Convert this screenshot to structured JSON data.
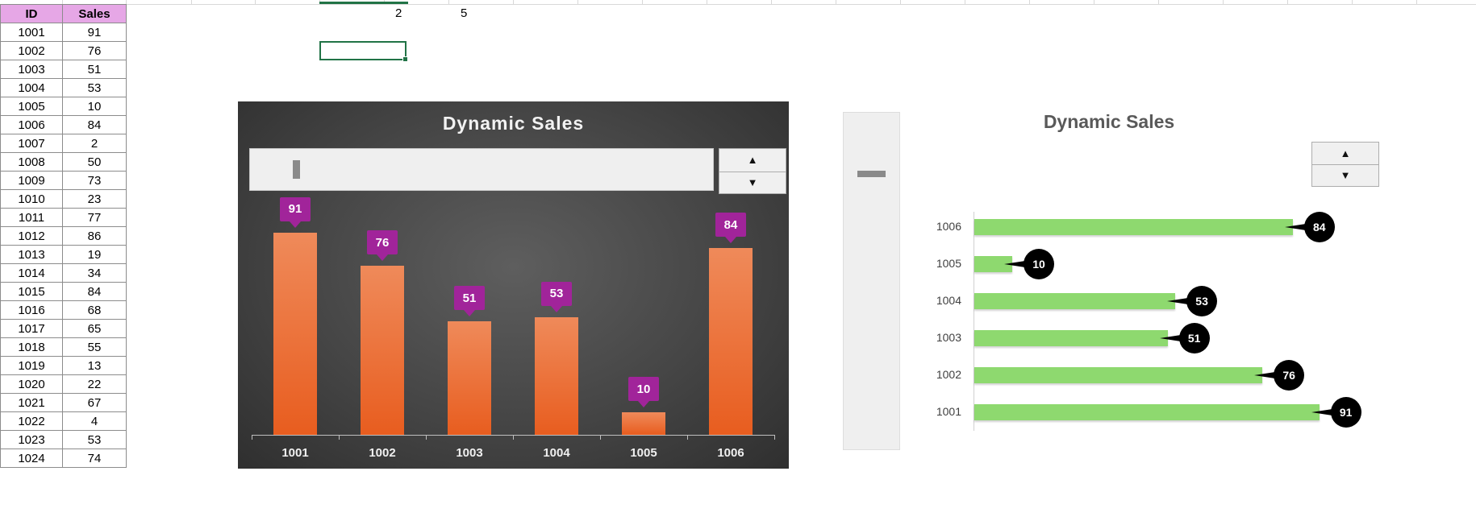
{
  "table": {
    "headers": [
      "ID",
      "Sales"
    ],
    "rows": [
      [
        "1001",
        "91"
      ],
      [
        "1002",
        "76"
      ],
      [
        "1003",
        "51"
      ],
      [
        "1004",
        "53"
      ],
      [
        "1005",
        "10"
      ],
      [
        "1006",
        "84"
      ],
      [
        "1007",
        "2"
      ],
      [
        "1008",
        "50"
      ],
      [
        "1009",
        "73"
      ],
      [
        "1010",
        "23"
      ],
      [
        "1011",
        "77"
      ],
      [
        "1012",
        "86"
      ],
      [
        "1013",
        "19"
      ],
      [
        "1014",
        "34"
      ],
      [
        "1015",
        "84"
      ],
      [
        "1016",
        "68"
      ],
      [
        "1017",
        "65"
      ],
      [
        "1018",
        "55"
      ],
      [
        "1019",
        "13"
      ],
      [
        "1020",
        "22"
      ],
      [
        "1021",
        "67"
      ],
      [
        "1022",
        "4"
      ],
      [
        "1023",
        "53"
      ],
      [
        "1024",
        "74"
      ]
    ]
  },
  "cells": {
    "val_a": "2",
    "val_b": "5"
  },
  "colors": {
    "header_fill": "#e6a7e6",
    "bar_orange": "#e8641f",
    "label_purple": "#a1249a",
    "bar_green": "#8ed96f",
    "chart_dark": "#454545"
  },
  "controls": {
    "spin_up_icon": "triangle-up",
    "spin_down_icon": "triangle-down",
    "scroll_position_fraction": 0.05
  },
  "chart_data": [
    {
      "type": "bar",
      "title": "Dynamic Sales",
      "categories": [
        "1001",
        "1002",
        "1003",
        "1004",
        "1005",
        "1006"
      ],
      "values": [
        91,
        76,
        51,
        53,
        10,
        84
      ],
      "ylim": [
        0,
        100
      ],
      "grid": false,
      "legend": "none"
    },
    {
      "type": "bar",
      "orientation": "horizontal",
      "title": "Dynamic Sales",
      "categories": [
        "1006",
        "1005",
        "1004",
        "1003",
        "1002",
        "1001"
      ],
      "values": [
        84,
        10,
        53,
        51,
        76,
        91
      ],
      "xlim": [
        0,
        100
      ],
      "grid": false,
      "legend": "none"
    }
  ]
}
